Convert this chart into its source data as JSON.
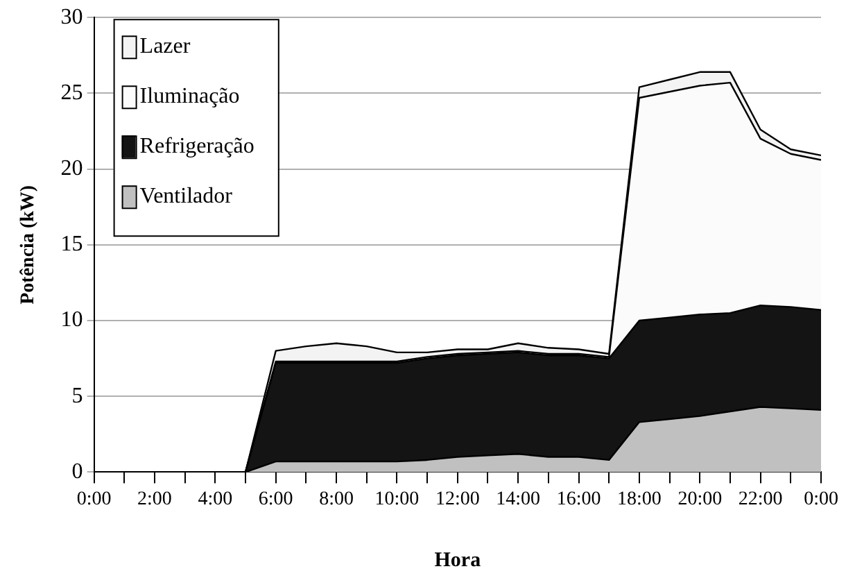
{
  "chart_data": {
    "type": "area",
    "xlabel": "Hora",
    "ylabel": "Potência (kW)",
    "stacked": true,
    "marker": "none",
    "grid": "y",
    "legend": "top left",
    "x": [
      0,
      1,
      2,
      3,
      4,
      5,
      6,
      7,
      8,
      9,
      10,
      11,
      12,
      13,
      14,
      15,
      16,
      17,
      18,
      19,
      20,
      21,
      22,
      23,
      24
    ],
    "xlim": [
      0,
      24
    ],
    "xticks": [
      {
        "value": 0,
        "label": "0:00"
      },
      {
        "value": 1,
        "label": null
      },
      {
        "value": 2,
        "label": "2:00"
      },
      {
        "value": 3,
        "label": null
      },
      {
        "value": 4,
        "label": "4:00"
      },
      {
        "value": 5,
        "label": null
      },
      {
        "value": 6,
        "label": "6:00"
      },
      {
        "value": 7,
        "label": null
      },
      {
        "value": 8,
        "label": "8:00"
      },
      {
        "value": 9,
        "label": null
      },
      {
        "value": 10,
        "label": "10:00"
      },
      {
        "value": 11,
        "label": null
      },
      {
        "value": 12,
        "label": "12:00"
      },
      {
        "value": 13,
        "label": null
      },
      {
        "value": 14,
        "label": "14:00"
      },
      {
        "value": 15,
        "label": null
      },
      {
        "value": 16,
        "label": "16:00"
      },
      {
        "value": 17,
        "label": null
      },
      {
        "value": 18,
        "label": "18:00"
      },
      {
        "value": 19,
        "label": null
      },
      {
        "value": 20,
        "label": "20:00"
      },
      {
        "value": 21,
        "label": null
      },
      {
        "value": 22,
        "label": "22:00"
      },
      {
        "value": 23,
        "label": null
      },
      {
        "value": 24,
        "label": "0:00"
      }
    ],
    "ylim": [
      0,
      30
    ],
    "yticks": [
      0,
      5,
      10,
      15,
      20,
      25,
      30
    ],
    "series": [
      {
        "name": "Ventilador",
        "color": "#c0c0c0",
        "values": [
          0,
          0,
          0,
          0,
          0,
          0,
          0.7,
          0.7,
          0.7,
          0.7,
          0.7,
          0.8,
          1.0,
          1.1,
          1.2,
          1.0,
          1.0,
          0.8,
          3.3,
          3.5,
          3.7,
          4.0,
          4.3,
          4.2,
          4.1
        ]
      },
      {
        "name": "Refrigeração",
        "color": "#141414",
        "values": [
          0,
          0,
          0,
          0,
          0,
          0,
          6.5,
          6.5,
          6.5,
          6.5,
          6.5,
          6.7,
          6.7,
          6.7,
          6.7,
          6.7,
          6.7,
          6.7,
          6.7,
          6.7,
          6.7,
          6.5,
          6.7,
          6.7,
          6.6
        ]
      },
      {
        "name": "Iluminação",
        "color": "#fbfbfb",
        "values": [
          0,
          0,
          0,
          0,
          0,
          0,
          0.1,
          0.1,
          0.1,
          0.1,
          0.1,
          0.1,
          0.1,
          0.1,
          0.1,
          0.1,
          0.1,
          0.1,
          14.7,
          14.9,
          15.1,
          15.2,
          11.0,
          10.1,
          9.9
        ]
      },
      {
        "name": "Lazer",
        "color": "#f3f3f3",
        "values": [
          0,
          0,
          0,
          0,
          0,
          0,
          0.7,
          1.0,
          1.2,
          1.0,
          0.6,
          0.3,
          0.3,
          0.2,
          0.5,
          0.4,
          0.3,
          0.2,
          0.7,
          0.8,
          0.9,
          0.7,
          0.6,
          0.3,
          0.3
        ]
      }
    ]
  }
}
